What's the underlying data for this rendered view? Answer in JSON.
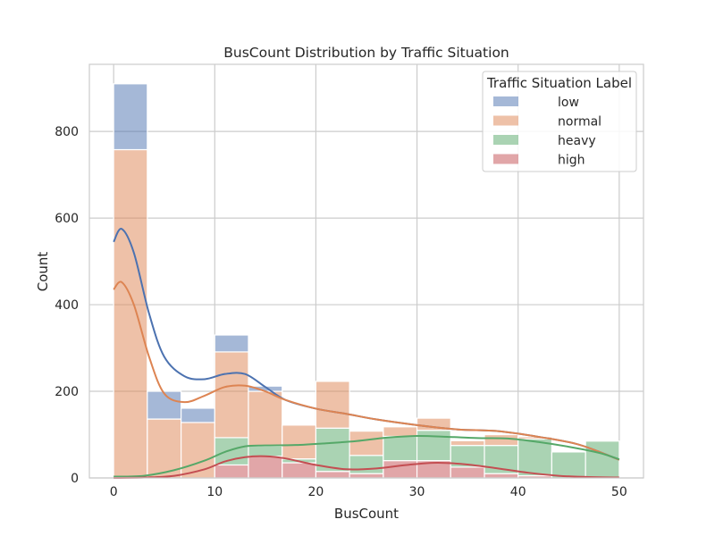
{
  "chart_data": {
    "type": "bar",
    "title": "BusCount Distribution by Traffic Situation",
    "xlabel": "BusCount",
    "ylabel": "Count",
    "xlim": [
      -2.4,
      52.4
    ],
    "ylim": [
      0,
      955
    ],
    "xticks": [
      0,
      10,
      20,
      30,
      40,
      50
    ],
    "yticks": [
      0,
      200,
      400,
      600,
      800
    ],
    "grid": true,
    "stacked": true,
    "bin_edges": [
      0,
      3.33,
      6.67,
      10,
      13.33,
      16.67,
      20,
      23.33,
      26.67,
      30,
      33.33,
      36.67,
      40,
      43.33,
      46.67,
      50
    ],
    "legend": {
      "title": "Traffic Situation Label",
      "position": "top-right"
    },
    "series": [
      {
        "name": "high",
        "color": "#c44e52",
        "values": [
          0,
          0,
          0,
          30,
          50,
          35,
          15,
          10,
          40,
          40,
          25,
          10,
          5,
          0,
          0
        ]
      },
      {
        "name": "heavy",
        "color": "#55a868",
        "values": [
          0,
          0,
          0,
          63,
          24,
          9,
          100,
          42,
          56,
          70,
          50,
          65,
          85,
          60,
          85
        ]
      },
      {
        "name": "normal",
        "color": "#dd8452",
        "values": [
          758,
          136,
          128,
          198,
          126,
          78,
          108,
          56,
          22,
          28,
          11,
          25,
          5,
          0,
          0
        ]
      },
      {
        "name": "low",
        "color": "#4c72b0",
        "values": [
          152,
          64,
          33,
          39,
          12,
          0,
          0,
          0,
          0,
          0,
          0,
          0,
          0,
          0,
          0
        ]
      }
    ],
    "kde": [
      {
        "name": "low",
        "color": "#4c72b0",
        "x": [
          0,
          0.8,
          2,
          3.5,
          5,
          7,
          9,
          11,
          13,
          15,
          17,
          20,
          23,
          26,
          30,
          34,
          38,
          42,
          46,
          50
        ],
        "y": [
          545,
          575,
          520,
          380,
          280,
          235,
          228,
          240,
          240,
          210,
          180,
          160,
          148,
          135,
          122,
          112,
          108,
          95,
          77,
          42
        ]
      },
      {
        "name": "normal",
        "color": "#dd8452",
        "x": [
          0,
          0.8,
          2,
          3.5,
          5,
          7,
          9,
          11,
          13,
          15,
          17,
          20,
          23,
          26,
          30,
          34,
          38,
          42,
          46,
          50
        ],
        "y": [
          435,
          452,
          400,
          280,
          195,
          175,
          190,
          210,
          213,
          200,
          180,
          160,
          148,
          135,
          122,
          112,
          108,
          95,
          77,
          42
        ]
      },
      {
        "name": "heavy",
        "color": "#55a868",
        "x": [
          0,
          3,
          6,
          9,
          11,
          13,
          15,
          18,
          21,
          24,
          27,
          30,
          33,
          36,
          39,
          42,
          45,
          48,
          50
        ],
        "y": [
          3,
          5,
          18,
          40,
          60,
          73,
          75,
          76,
          80,
          85,
          93,
          97,
          95,
          92,
          91,
          83,
          72,
          58,
          43
        ]
      },
      {
        "name": "high",
        "color": "#c44e52",
        "x": [
          0,
          3,
          6,
          9,
          11,
          13,
          15,
          17,
          20,
          23,
          26,
          29,
          32,
          35,
          38,
          41,
          44,
          47,
          50
        ],
        "y": [
          0,
          1,
          5,
          20,
          38,
          48,
          50,
          45,
          30,
          20,
          22,
          30,
          35,
          31,
          22,
          12,
          5,
          2,
          1
        ]
      }
    ]
  }
}
